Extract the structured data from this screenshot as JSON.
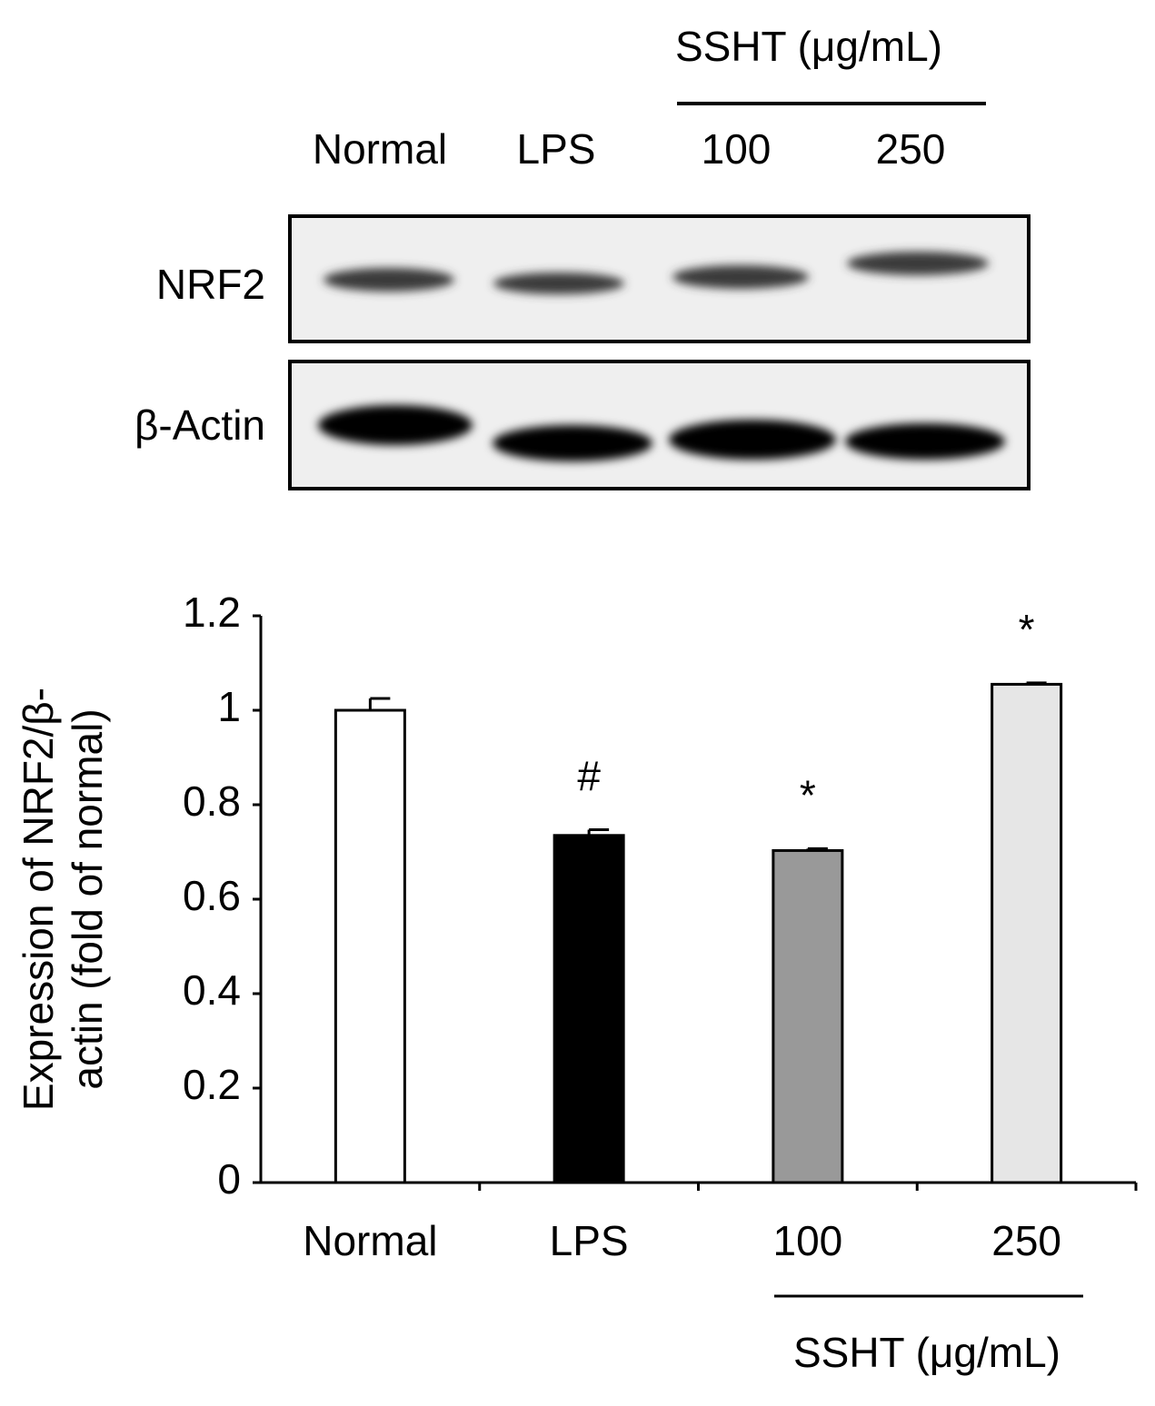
{
  "blot": {
    "group_label": "SSHT (μg/mL)",
    "lanes": [
      "Normal",
      "LPS",
      "100",
      "250"
    ],
    "rows": [
      "NRF2",
      "β-Actin"
    ]
  },
  "chart_data": {
    "type": "bar",
    "ylabel": [
      "Expression of NRF2/β-",
      "actin (fold of normal)"
    ],
    "categories": [
      "Normal",
      "LPS",
      "100",
      "250"
    ],
    "values": [
      1.0,
      0.735,
      0.703,
      1.055
    ],
    "errors": [
      0.025,
      0.012,
      0.004,
      0.003
    ],
    "colors": [
      "#ffffff",
      "#000000",
      "#999999",
      "#e6e6e6"
    ],
    "annotations": [
      null,
      "#",
      "*",
      "*"
    ],
    "xgroup_label": "SSHT (μg/mL)",
    "ylim": [
      0,
      1.2
    ],
    "yticks": [
      0,
      0.2,
      0.4,
      0.6,
      0.8,
      1,
      1.2
    ]
  }
}
